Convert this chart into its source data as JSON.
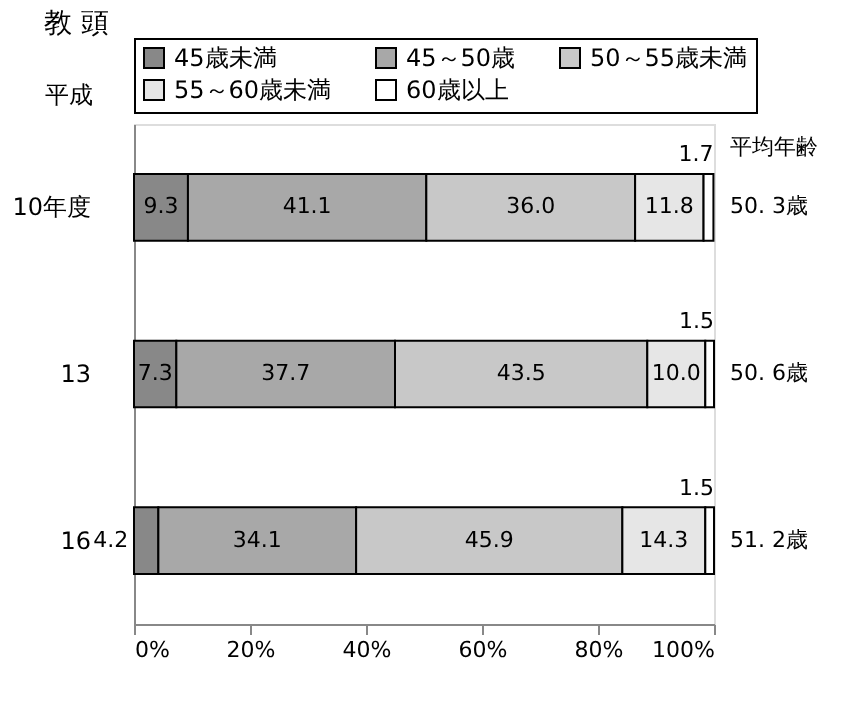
{
  "chart_data": {
    "type": "bar",
    "orientation": "horizontal",
    "stacked": true,
    "title": "教 頭",
    "ylabel": "平成",
    "categories": [
      "10年度",
      "13",
      "16"
    ],
    "series": [
      {
        "name": "45歳未満",
        "color": "#888888",
        "values": [
          9.3,
          7.3,
          4.2
        ],
        "value_labels": [
          "9.3",
          "7.3",
          "4.2"
        ]
      },
      {
        "name": "45～50歳",
        "color": "#a8a8a8",
        "values": [
          41.1,
          37.7,
          34.1
        ],
        "value_labels": [
          "41.1",
          "37.7",
          "34.1"
        ]
      },
      {
        "name": "50～55歳未満",
        "color": "#c8c8c8",
        "values": [
          36.0,
          43.5,
          45.9
        ],
        "value_labels": [
          "36.0",
          "43.5",
          "45.9"
        ]
      },
      {
        "name": "55～60歳未満",
        "color": "#e6e6e6",
        "values": [
          11.8,
          10.0,
          14.3
        ],
        "value_labels": [
          "11.8",
          "10.0",
          "14.3"
        ]
      },
      {
        "name": "60歳以上",
        "color": "#ffffff",
        "values": [
          1.7,
          1.5,
          1.5
        ],
        "value_labels": [
          "1.7",
          "1.5",
          "1.5"
        ]
      }
    ],
    "xlim": [
      0,
      100
    ],
    "xticks": [
      {
        "value": 0,
        "label": "0%"
      },
      {
        "value": 20,
        "label": "20%"
      },
      {
        "value": 40,
        "label": "40%"
      },
      {
        "value": 60,
        "label": "60%"
      },
      {
        "value": 80,
        "label": "80%"
      },
      {
        "value": 100,
        "label": "100%"
      }
    ],
    "legend": "top",
    "grid": false,
    "annotations": [
      "平均年齢",
      "50. 3歳",
      "50. 6歳",
      "51. 2歳"
    ]
  }
}
